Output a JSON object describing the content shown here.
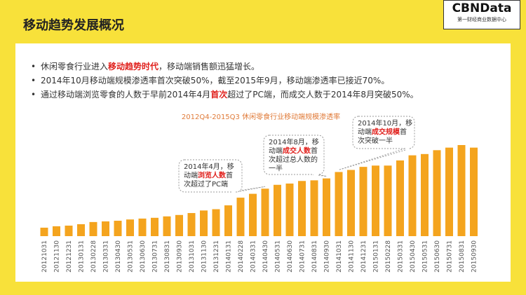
{
  "header": {
    "title": "移动趋势发展概况",
    "logo": "CBNData",
    "logo_sub": "第一财经商业数据中心"
  },
  "bullets": [
    [
      {
        "text": "休闲零食行业进入"
      },
      {
        "text": "移动趋势时代",
        "emphasis": true
      },
      {
        "text": "，移动端销售额迅猛增长。"
      }
    ],
    [
      {
        "text": "2014年10月移动端规模渗透率首次突破50%，截至2015年9月，移动端渗透率已接近70%。"
      }
    ],
    [
      {
        "text": "通过移动端浏览零食的人数于早前2014年4月"
      },
      {
        "text": "首次",
        "emphasis": true
      },
      {
        "text": "超过了PC端，而成交人数于2014年8月突破50%。"
      }
    ]
  ],
  "chart_data": {
    "type": "bar",
    "title": "2012Q4-2015Q3 休闲零食行业移动端规模渗透率",
    "color": "#f4a41e",
    "emphasis_color": "#e0201c",
    "categories": [
      "20121031",
      "20121130",
      "20121231",
      "20130131",
      "20130228",
      "20130331",
      "20130430",
      "20130531",
      "20130630",
      "20130731",
      "20130831",
      "20130930",
      "20131031",
      "20131130",
      "20131231",
      "20140131",
      "20140228",
      "20140331",
      "20140430",
      "20140531",
      "20140630",
      "20140731",
      "20140831",
      "20140930",
      "20141031",
      "20141130",
      "20141231",
      "20150131",
      "20150228",
      "20150331",
      "20150430",
      "20150531",
      "20150630",
      "20150731",
      "20150831",
      "20150930"
    ],
    "values": [
      6.6,
      7.7,
      8.2,
      9.3,
      11,
      11.5,
      12,
      13,
      13.7,
      14.3,
      15.4,
      16.5,
      18,
      20,
      21,
      24,
      30,
      33,
      37,
      40,
      41,
      43,
      43.5,
      45,
      50,
      51.6,
      54,
      55,
      55,
      59,
      63,
      64,
      67,
      69,
      71,
      69
    ],
    "annotations": [
      {
        "category": "20140430",
        "lines": [
          [
            {
              "text": "2014年4月，移"
            }
          ],
          [
            {
              "text": "动端"
            },
            {
              "text": "浏览人数",
              "emphasis": true
            },
            {
              "text": "首"
            }
          ],
          [
            {
              "text": "次超过了PC端"
            }
          ]
        ]
      },
      {
        "category": "20140930",
        "lines": [
          [
            {
              "text": "2014年8月，移"
            }
          ],
          [
            {
              "text": "动端"
            },
            {
              "text": "成交人数",
              "emphasis": true
            },
            {
              "text": "首"
            }
          ],
          [
            {
              "text": "次超过总人数的"
            }
          ],
          [
            {
              "text": "一半"
            }
          ]
        ]
      },
      {
        "category": "20141031",
        "lines": [
          [
            {
              "text": "2014年10月，移"
            }
          ],
          [
            {
              "text": "动端"
            },
            {
              "text": "成交规模",
              "emphasis": true
            },
            {
              "text": "首"
            }
          ],
          [
            {
              "text": "次突破一半"
            }
          ]
        ]
      }
    ]
  }
}
